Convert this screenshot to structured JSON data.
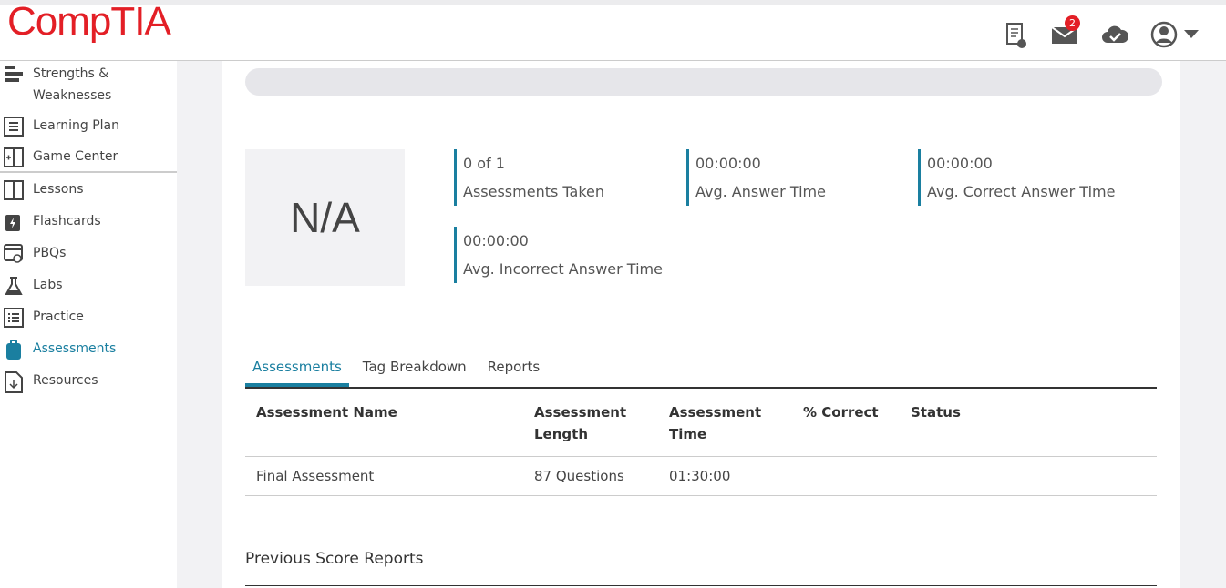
{
  "header": {
    "logo": "CompTIA",
    "mail_badge": "2"
  },
  "sidebar": {
    "items": [
      {
        "label": "Strengths & Weaknesses",
        "icon": "strengths-icon"
      },
      {
        "label": "Learning Plan",
        "icon": "learning-plan-icon"
      },
      {
        "label": "Game Center",
        "icon": "game-center-icon"
      },
      {
        "label": "Lessons",
        "icon": "book-icon"
      },
      {
        "label": "Flashcards",
        "icon": "flashcards-icon"
      },
      {
        "label": "PBQs",
        "icon": "pbq-icon"
      },
      {
        "label": "Labs",
        "icon": "flask-icon"
      },
      {
        "label": "Practice",
        "icon": "list-icon"
      },
      {
        "label": "Assessments",
        "icon": "clipboard-icon"
      },
      {
        "label": "Resources",
        "icon": "download-file-icon"
      }
    ],
    "active": "Assessments",
    "accent": "#1a7fa0"
  },
  "summary": {
    "score": "N/A",
    "stats": [
      {
        "value": "0 of 1",
        "label": "Assessments Taken"
      },
      {
        "value": "00:00:00",
        "label": "Avg. Answer Time"
      },
      {
        "value": "00:00:00",
        "label": "Avg. Correct Answer Time"
      },
      {
        "value": "00:00:00",
        "label": "Avg. Incorrect Answer Time"
      }
    ]
  },
  "tabs": [
    {
      "label": "Assessments"
    },
    {
      "label": "Tag Breakdown"
    },
    {
      "label": "Reports"
    }
  ],
  "table": {
    "headers": [
      "Assessment Name",
      "Assessment Length",
      "Assessment Time",
      "% Correct",
      "Status"
    ],
    "rows": [
      [
        "Final Assessment",
        "87 Questions",
        "01:30:00",
        "",
        ""
      ]
    ]
  },
  "previous_reports": {
    "title": "Previous Score Reports"
  }
}
